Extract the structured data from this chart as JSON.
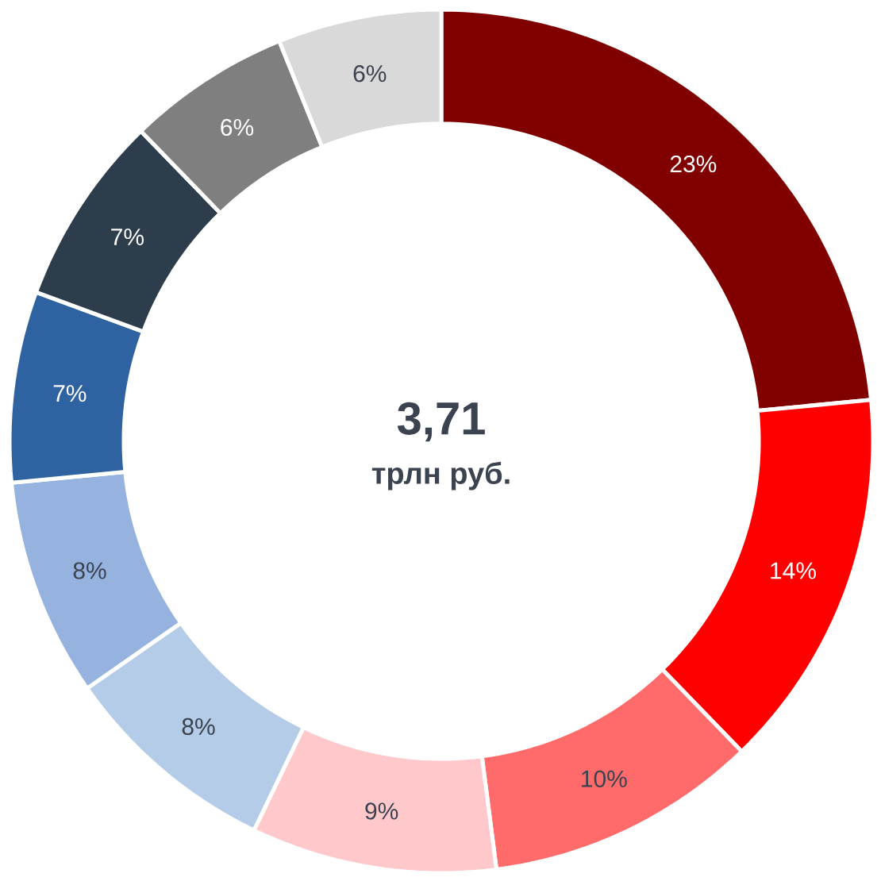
{
  "chart_data": {
    "type": "donut",
    "categories": [
      null,
      null,
      null,
      null,
      null,
      null,
      null,
      null,
      null,
      null
    ],
    "values": [
      23,
      14,
      10,
      9,
      8,
      8,
      7,
      7,
      6,
      6
    ],
    "value_labels": [
      "23%",
      "14%",
      "10%",
      "9%",
      "8%",
      "8%",
      "7%",
      "7%",
      "6%",
      "6%"
    ],
    "colors": [
      "#800000",
      "#ff0000",
      "#ff6b6b",
      "#ffc9cc",
      "#b4cce8",
      "#95b3de",
      "#2e62a0",
      "#2d3d4b",
      "#7f7f7f",
      "#d9d9d9"
    ],
    "title": "3,71",
    "subtitle": "трлн руб."
  }
}
